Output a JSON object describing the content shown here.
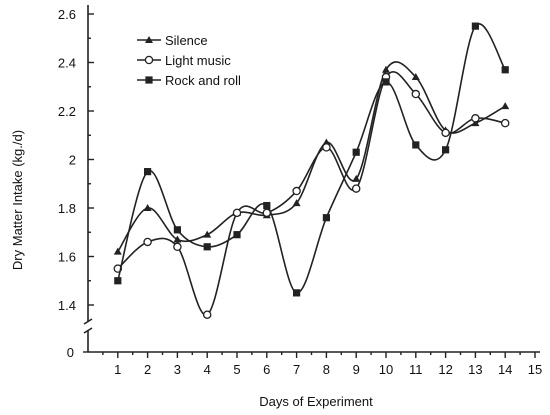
{
  "chart_data": {
    "type": "line",
    "title": "",
    "xlabel": "Days of Experiment",
    "ylabel": "Dry Matter Intake (kg./d)",
    "x_ticks": [
      "1",
      "2",
      "3",
      "4",
      "5",
      "6",
      "7",
      "8",
      "9",
      "10",
      "11",
      "12",
      "13",
      "14",
      "15"
    ],
    "y_ticks": [
      "1.4",
      "1.6",
      "1.8",
      "2",
      "2.2",
      "2.4",
      "2.6"
    ],
    "y_zero_label": "0",
    "xlim": [
      0,
      15
    ],
    "ylim": [
      1.3,
      2.6
    ],
    "axis_break": true,
    "grid": false,
    "legend_position": "top-left",
    "x": [
      1,
      2,
      3,
      4,
      5,
      6,
      7,
      8,
      9,
      10,
      11,
      12,
      13,
      14
    ],
    "series": [
      {
        "name": "Silence",
        "marker": "triangle",
        "values": [
          1.62,
          1.8,
          1.67,
          1.69,
          1.78,
          1.77,
          1.82,
          2.07,
          1.92,
          2.37,
          2.34,
          2.12,
          2.15,
          2.22
        ]
      },
      {
        "name": "Light music",
        "marker": "circle-open",
        "values": [
          1.55,
          1.66,
          1.64,
          1.36,
          1.78,
          1.78,
          1.87,
          2.05,
          1.88,
          2.34,
          2.27,
          2.11,
          2.17,
          2.15
        ]
      },
      {
        "name": "Rock and roll",
        "marker": "square",
        "values": [
          1.5,
          1.95,
          1.71,
          1.64,
          1.69,
          1.81,
          1.45,
          1.76,
          2.03,
          2.32,
          2.06,
          2.04,
          2.55,
          2.37
        ]
      }
    ]
  }
}
